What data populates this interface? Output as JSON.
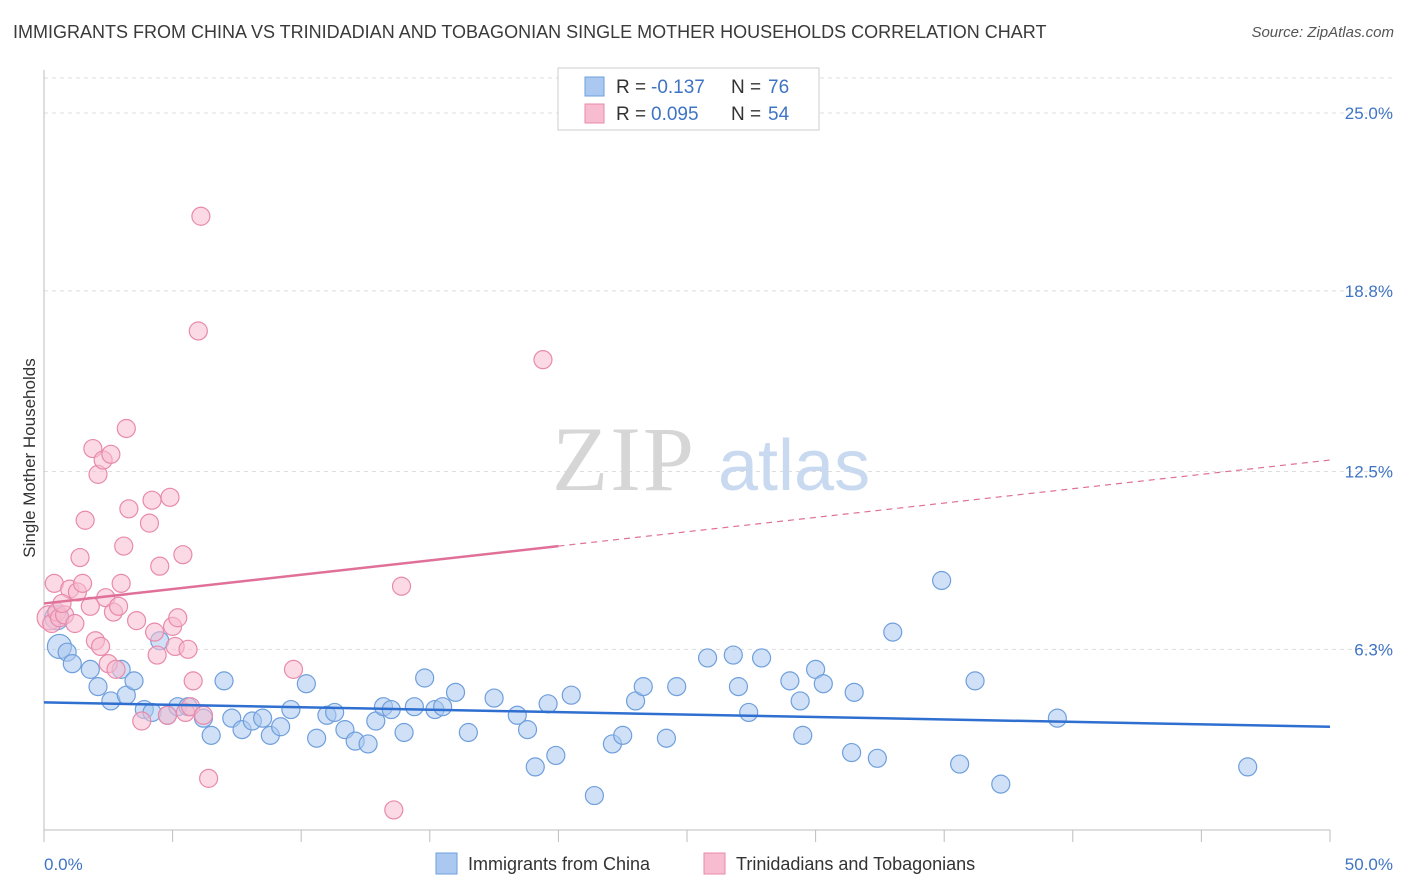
{
  "title": "IMMIGRANTS FROM CHINA VS TRINIDADIAN AND TOBAGONIAN SINGLE MOTHER HOUSEHOLDS CORRELATION CHART",
  "source": "Source: ZipAtlas.com",
  "watermark": {
    "zip": "ZIP",
    "atlas": "atlas"
  },
  "colors": {
    "china_fill": "#aac8f0",
    "china_stroke": "#6f9fdc",
    "china_line": "#2f6fd0",
    "tt_fill": "#f7bcd0",
    "tt_stroke": "#e88aab",
    "tt_line": "#e07098",
    "accent_text": "#3f74c4",
    "grid": "#dddddd"
  },
  "legend": {
    "rows": [
      {
        "r_label": "R = ",
        "r_value": "-0.137",
        "n_label": "N = ",
        "n_value": "76"
      },
      {
        "r_label": "R = ",
        "r_value": "0.095",
        "n_label": "N = ",
        "n_value": "54"
      }
    ]
  },
  "chart_data": {
    "type": "scatter",
    "title": "IMMIGRANTS FROM CHINA VS TRINIDADIAN AND TOBAGONIAN SINGLE MOTHER HOUSEHOLDS CORRELATION CHART",
    "xlabel": "",
    "ylabel": "Single Mother Households",
    "xlim": [
      0,
      50
    ],
    "ylim": [
      0,
      26.5
    ],
    "x_tick_labels": [
      "0.0%",
      "50.0%"
    ],
    "y_ticks": [
      6.3,
      12.5,
      18.8,
      25.0
    ],
    "y_tick_labels": [
      "6.3%",
      "12.5%",
      "18.8%",
      "25.0%"
    ],
    "grid": true,
    "legend_position": "top-center",
    "series": [
      {
        "name": "Immigrants from China",
        "r": -0.137,
        "n": 76,
        "trend": {
          "x0": 0,
          "y0": 4.45,
          "x1": 50,
          "y1": 3.6,
          "solid_until": 50
        },
        "points": [
          [
            0.5,
            7.4
          ],
          [
            0.6,
            6.4
          ],
          [
            0.9,
            6.2
          ],
          [
            1.1,
            5.8
          ],
          [
            1.8,
            5.6
          ],
          [
            2.1,
            5.0
          ],
          [
            2.6,
            4.5
          ],
          [
            3.0,
            5.6
          ],
          [
            3.2,
            4.7
          ],
          [
            3.5,
            5.2
          ],
          [
            3.9,
            4.2
          ],
          [
            4.2,
            4.1
          ],
          [
            4.5,
            6.6
          ],
          [
            4.8,
            4.0
          ],
          [
            5.2,
            4.3
          ],
          [
            5.6,
            4.3
          ],
          [
            6.2,
            3.9
          ],
          [
            6.5,
            3.3
          ],
          [
            7.0,
            5.2
          ],
          [
            7.3,
            3.9
          ],
          [
            7.7,
            3.5
          ],
          [
            8.1,
            3.8
          ],
          [
            8.5,
            3.9
          ],
          [
            8.8,
            3.3
          ],
          [
            9.2,
            3.6
          ],
          [
            9.6,
            4.2
          ],
          [
            10.2,
            5.1
          ],
          [
            10.6,
            3.2
          ],
          [
            11.0,
            4.0
          ],
          [
            11.3,
            4.1
          ],
          [
            11.7,
            3.5
          ],
          [
            12.1,
            3.1
          ],
          [
            12.6,
            3.0
          ],
          [
            12.9,
            3.8
          ],
          [
            13.2,
            4.3
          ],
          [
            13.5,
            4.2
          ],
          [
            14.0,
            3.4
          ],
          [
            14.4,
            4.3
          ],
          [
            14.8,
            5.3
          ],
          [
            15.2,
            4.2
          ],
          [
            15.5,
            4.3
          ],
          [
            16.0,
            4.8
          ],
          [
            16.5,
            3.4
          ],
          [
            17.5,
            4.6
          ],
          [
            18.4,
            4.0
          ],
          [
            18.8,
            3.5
          ],
          [
            19.1,
            2.2
          ],
          [
            19.6,
            4.4
          ],
          [
            19.9,
            2.6
          ],
          [
            20.5,
            4.7
          ],
          [
            21.4,
            1.2
          ],
          [
            22.1,
            3.0
          ],
          [
            22.5,
            3.3
          ],
          [
            23.0,
            4.5
          ],
          [
            23.3,
            5.0
          ],
          [
            24.2,
            3.2
          ],
          [
            24.6,
            5.0
          ],
          [
            25.8,
            6.0
          ],
          [
            26.8,
            6.1
          ],
          [
            27.0,
            5.0
          ],
          [
            27.4,
            4.1
          ],
          [
            27.9,
            6.0
          ],
          [
            29.0,
            5.2
          ],
          [
            29.4,
            4.5
          ],
          [
            29.5,
            3.3
          ],
          [
            30.0,
            5.6
          ],
          [
            30.3,
            5.1
          ],
          [
            31.4,
            2.7
          ],
          [
            31.5,
            4.8
          ],
          [
            32.4,
            2.5
          ],
          [
            33.0,
            6.9
          ],
          [
            34.9,
            8.7
          ],
          [
            35.6,
            2.3
          ],
          [
            36.2,
            5.2
          ],
          [
            37.2,
            1.6
          ],
          [
            39.4,
            3.9
          ],
          [
            46.8,
            2.2
          ]
        ]
      },
      {
        "name": "Trinidadians and Tobagonians",
        "r": 0.095,
        "n": 54,
        "trend": {
          "x0": 0,
          "y0": 7.9,
          "x1": 50,
          "y1": 12.9,
          "solid_until": 20
        },
        "points": [
          [
            0.2,
            7.4
          ],
          [
            0.3,
            7.2
          ],
          [
            0.4,
            8.6
          ],
          [
            0.5,
            7.6
          ],
          [
            0.6,
            7.4
          ],
          [
            0.8,
            7.5
          ],
          [
            1.0,
            8.4
          ],
          [
            1.2,
            7.2
          ],
          [
            1.3,
            8.3
          ],
          [
            1.4,
            9.5
          ],
          [
            1.5,
            8.6
          ],
          [
            1.6,
            10.8
          ],
          [
            1.8,
            7.8
          ],
          [
            1.9,
            13.3
          ],
          [
            2.0,
            6.6
          ],
          [
            2.1,
            12.4
          ],
          [
            2.2,
            6.4
          ],
          [
            2.3,
            12.9
          ],
          [
            2.4,
            8.1
          ],
          [
            2.5,
            5.8
          ],
          [
            2.6,
            13.1
          ],
          [
            2.7,
            7.6
          ],
          [
            2.8,
            5.6
          ],
          [
            2.9,
            7.8
          ],
          [
            3.0,
            8.6
          ],
          [
            3.1,
            9.9
          ],
          [
            3.2,
            14.0
          ],
          [
            3.3,
            11.2
          ],
          [
            3.6,
            7.3
          ],
          [
            3.8,
            3.8
          ],
          [
            4.1,
            10.7
          ],
          [
            4.2,
            11.5
          ],
          [
            4.3,
            6.9
          ],
          [
            4.4,
            6.1
          ],
          [
            4.5,
            9.2
          ],
          [
            4.8,
            4.0
          ],
          [
            4.9,
            11.6
          ],
          [
            5.0,
            7.1
          ],
          [
            5.1,
            6.4
          ],
          [
            5.2,
            7.4
          ],
          [
            5.4,
            9.6
          ],
          [
            5.5,
            4.1
          ],
          [
            5.6,
            6.3
          ],
          [
            5.7,
            4.3
          ],
          [
            5.8,
            5.2
          ],
          [
            6.0,
            17.4
          ],
          [
            6.1,
            21.4
          ],
          [
            6.2,
            4.0
          ],
          [
            6.4,
            1.8
          ],
          [
            9.7,
            5.6
          ],
          [
            13.6,
            0.7
          ],
          [
            13.9,
            8.5
          ],
          [
            19.4,
            16.4
          ],
          [
            0.7,
            7.9
          ]
        ]
      }
    ]
  },
  "bottom_legend": {
    "items": [
      "Immigrants from China",
      "Trinidadians and Tobagonians"
    ]
  }
}
